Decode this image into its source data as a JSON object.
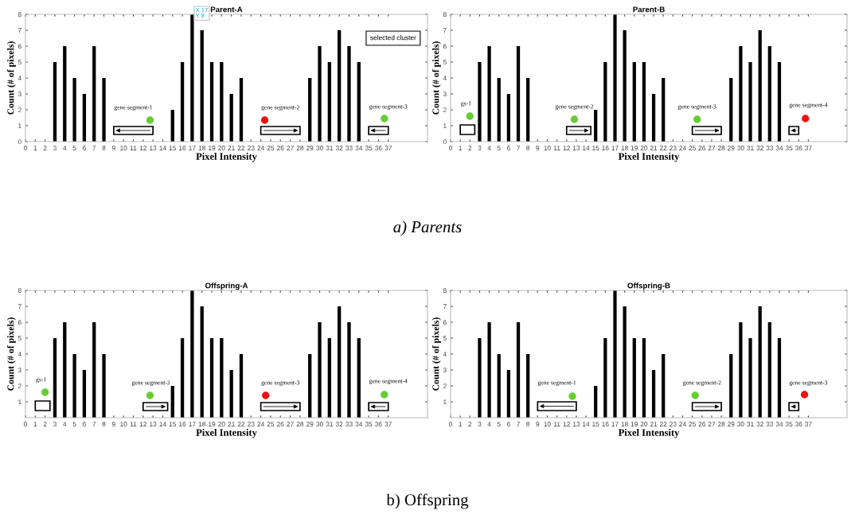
{
  "chart_data": [
    {
      "type": "bar",
      "title": "Parent-A",
      "xlabel": "Pixel Intensity",
      "ylabel": "Count (# of pixels)",
      "xlim": [
        0,
        41
      ],
      "xticks": [
        0,
        1,
        2,
        3,
        4,
        5,
        6,
        7,
        8,
        9,
        10,
        11,
        12,
        13,
        14,
        15,
        16,
        17,
        18,
        19,
        20,
        21,
        22,
        23,
        24,
        25,
        26,
        27,
        28,
        29,
        30,
        31,
        32,
        33,
        34,
        35,
        36,
        37
      ],
      "ylim": [
        0,
        8
      ],
      "yticks": [
        0,
        1,
        2,
        3,
        4,
        5,
        6,
        7,
        8
      ],
      "grid": false,
      "series": [
        {
          "color": "#000000",
          "x": [
            0,
            1,
            2,
            3,
            4,
            5,
            6,
            7,
            8,
            9,
            10,
            11,
            12,
            13,
            14,
            15,
            16,
            17,
            18,
            19,
            20,
            21,
            22,
            23,
            24,
            25,
            26,
            27,
            28,
            29,
            30,
            31,
            32,
            33,
            34,
            35,
            36,
            37
          ],
          "values": [
            0,
            0,
            0,
            5,
            6,
            4,
            3,
            6,
            4,
            0,
            0,
            0,
            0,
            0,
            0,
            2,
            5,
            8,
            7,
            5,
            5,
            3,
            4,
            0,
            0,
            0,
            0,
            0,
            0,
            4,
            6,
            5,
            7,
            6,
            5,
            0,
            0,
            0
          ]
        },
        {
          "type": "scatter",
          "x": [
            12.7,
            24.4,
            36.6
          ],
          "values": [
            1.35,
            1.35,
            1.45
          ],
          "colors": [
            "#66cc33",
            "#ee1111",
            "#66cc33"
          ]
        }
      ],
      "annotations": [
        "gene segment-1",
        "gene segment-2",
        "gene segment-3",
        {
          "text": "X 17\nY 8",
          "x": 17,
          "y": 8
        },
        "selected cluster",
        "a) Parents"
      ]
    },
    {
      "type": "bar",
      "title": "Parent-B",
      "xlabel": "Pixel Intensity",
      "ylabel": "Count (# of pixels)",
      "xlim": [
        0,
        41
      ],
      "xticks": [
        0,
        1,
        2,
        3,
        4,
        5,
        6,
        7,
        8,
        9,
        10,
        11,
        12,
        13,
        14,
        15,
        16,
        17,
        18,
        19,
        20,
        21,
        22,
        23,
        24,
        25,
        26,
        27,
        28,
        29,
        30,
        31,
        32,
        33,
        34,
        35,
        36,
        37
      ],
      "ylim": [
        0,
        8
      ],
      "yticks": [
        0,
        1,
        2,
        3,
        4,
        5,
        6,
        7,
        8
      ],
      "grid": false,
      "series": [
        {
          "color": "#000000",
          "x": [
            0,
            1,
            2,
            3,
            4,
            5,
            6,
            7,
            8,
            9,
            10,
            11,
            12,
            13,
            14,
            15,
            16,
            17,
            18,
            19,
            20,
            21,
            22,
            23,
            24,
            25,
            26,
            27,
            28,
            29,
            30,
            31,
            32,
            33,
            34,
            35,
            36,
            37
          ],
          "values": [
            0,
            0,
            0,
            5,
            6,
            4,
            3,
            6,
            4,
            0,
            0,
            0,
            0,
            0,
            0,
            2,
            5,
            8,
            7,
            5,
            5,
            3,
            4,
            0,
            0,
            0,
            0,
            0,
            0,
            4,
            6,
            5,
            7,
            6,
            5,
            0,
            0,
            0
          ]
        },
        {
          "type": "scatter",
          "x": [
            2.0,
            12.8,
            25.5,
            36.7
          ],
          "values": [
            1.6,
            1.4,
            1.4,
            1.45
          ],
          "colors": [
            "#66cc33",
            "#66cc33",
            "#66cc33",
            "#ee1111"
          ]
        }
      ],
      "annotations": [
        "gs-1",
        "gene segment-2",
        "gene segment-3",
        "gene segment-4"
      ]
    },
    {
      "type": "bar",
      "title": "Offspring-A",
      "xlabel": "Pixel Intensity",
      "ylabel": "Count (# of pixels)",
      "xlim": [
        0,
        41
      ],
      "xticks": [
        0,
        1,
        2,
        3,
        4,
        5,
        6,
        7,
        8,
        9,
        10,
        11,
        12,
        13,
        14,
        15,
        16,
        17,
        18,
        19,
        20,
        21,
        22,
        23,
        24,
        25,
        26,
        27,
        28,
        29,
        30,
        31,
        32,
        33,
        34,
        35,
        36,
        37
      ],
      "ylim": [
        0,
        8
      ],
      "yticks": [
        1,
        2,
        3,
        4,
        5,
        6,
        7,
        8
      ],
      "grid": false,
      "series": [
        {
          "color": "#000000",
          "x": [
            0,
            1,
            2,
            3,
            4,
            5,
            6,
            7,
            8,
            9,
            10,
            11,
            12,
            13,
            14,
            15,
            16,
            17,
            18,
            19,
            20,
            21,
            22,
            23,
            24,
            25,
            26,
            27,
            28,
            29,
            30,
            31,
            32,
            33,
            34,
            35,
            36,
            37
          ],
          "values": [
            0,
            0,
            0,
            5,
            6,
            4,
            3,
            6,
            4,
            0,
            0,
            0,
            0,
            0,
            0,
            2,
            5,
            8,
            7,
            5,
            5,
            3,
            4,
            0,
            0,
            0,
            0,
            0,
            0,
            4,
            6,
            5,
            7,
            6,
            5,
            0,
            0,
            0
          ]
        },
        {
          "type": "scatter",
          "x": [
            2.0,
            12.7,
            24.5,
            36.6
          ],
          "values": [
            1.6,
            1.4,
            1.4,
            1.45
          ],
          "colors": [
            "#66cc33",
            "#66cc33",
            "#ee1111",
            "#66cc33"
          ]
        }
      ],
      "annotations": [
        "gs-1",
        "gene segment-2",
        "gene segment-3",
        "gene segment-4",
        "b) Offspring"
      ]
    },
    {
      "type": "bar",
      "title": "Offspring-B",
      "xlabel": "Pixel Intensity",
      "ylabel": "Count (# of pixels)",
      "xlim": [
        0,
        41
      ],
      "xticks": [
        0,
        1,
        2,
        3,
        4,
        5,
        6,
        7,
        8,
        9,
        10,
        11,
        12,
        13,
        14,
        15,
        16,
        17,
        18,
        19,
        20,
        21,
        22,
        23,
        24,
        25,
        26,
        27,
        28,
        29,
        30,
        31,
        32,
        33,
        34,
        35,
        36,
        37
      ],
      "ylim": [
        0,
        8
      ],
      "yticks": [
        1,
        2,
        3,
        4,
        5,
        6,
        7,
        8
      ],
      "grid": false,
      "series": [
        {
          "color": "#000000",
          "x": [
            0,
            1,
            2,
            3,
            4,
            5,
            6,
            7,
            8,
            9,
            10,
            11,
            12,
            13,
            14,
            15,
            16,
            17,
            18,
            19,
            20,
            21,
            22,
            23,
            24,
            25,
            26,
            27,
            28,
            29,
            30,
            31,
            32,
            33,
            34,
            35,
            36,
            37
          ],
          "values": [
            0,
            0,
            0,
            5,
            6,
            4,
            3,
            6,
            4,
            0,
            0,
            0,
            0,
            0,
            0,
            2,
            5,
            8,
            7,
            5,
            5,
            3,
            4,
            0,
            0,
            0,
            0,
            0,
            0,
            4,
            6,
            5,
            7,
            6,
            5,
            0,
            0,
            0
          ]
        },
        {
          "type": "scatter",
          "x": [
            12.6,
            25.3,
            36.6
          ],
          "values": [
            1.35,
            1.4,
            1.45
          ],
          "colors": [
            "#66cc33",
            "#66cc33",
            "#ee1111"
          ]
        }
      ],
      "annotations": [
        "gene segment-1",
        "gene segment-2",
        "gene segment-3"
      ]
    }
  ]
}
